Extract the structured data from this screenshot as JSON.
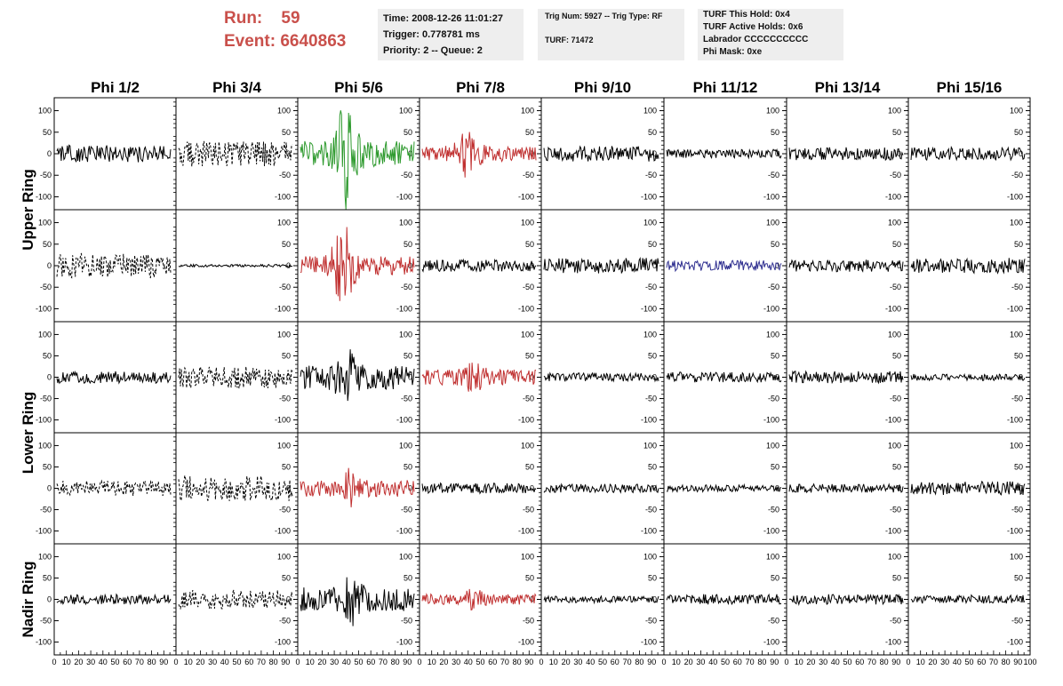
{
  "header": {
    "run_label": "Run:",
    "run_value": "59",
    "event_label": "Event:",
    "event_value": "6640863"
  },
  "info_box_1": {
    "time": "Time: 2008-12-26 11:01:27",
    "trigger": "Trigger: 0.778781 ms",
    "priority": "Priority: 2 -- Queue: 2"
  },
  "info_box_2": {
    "trig": "Trig Num: 5927 -- Trig Type: RF",
    "turf": "TURF: 71472"
  },
  "info_box_3": {
    "this_hold": "TURF This Hold: 0x4",
    "active_holds": "TURF Active Holds: 0x6",
    "labrador": "Labrador CCCCCCCCCC",
    "phi_mask": "Phi Mask: 0xe"
  },
  "colors": {
    "normal": "#000000",
    "green": "#2e9a2e",
    "red": "#c03030",
    "blue": "#303090",
    "header_red": "#c9504b"
  },
  "chart_data": {
    "type": "line",
    "phi_labels": [
      "Phi 1/2",
      "Phi 3/4",
      "Phi 5/6",
      "Phi 7/8",
      "Phi 9/10",
      "Phi 11/12",
      "Phi 13/14",
      "Phi 15/16"
    ],
    "ring_labels": [
      "Upper Ring",
      "Lower Ring",
      "Nadir Ring"
    ],
    "y_ticks": [
      100,
      50,
      0,
      -50,
      -100
    ],
    "ylim": [
      -130,
      130
    ],
    "xlim": [
      0,
      100
    ],
    "x_tick_labels": [
      "0",
      "10",
      "20",
      "30",
      "40",
      "50",
      "60",
      "70",
      "80",
      "90",
      "100"
    ],
    "grid": false,
    "panels": [
      [
        {
          "style": "solid",
          "color": "normal",
          "amp": 20,
          "burst": 0,
          "center": 50
        },
        {
          "style": "dashed",
          "color": "normal",
          "amp": 30,
          "burst": 0,
          "center": 50
        },
        {
          "style": "solid",
          "color": "green",
          "amp": 30,
          "burst": 100,
          "center": 40
        },
        {
          "style": "solid",
          "color": "red",
          "amp": 18,
          "burst": 40,
          "center": 40
        },
        {
          "style": "solid",
          "color": "normal",
          "amp": 18,
          "burst": 0,
          "center": 50
        },
        {
          "style": "solid",
          "color": "normal",
          "amp": 10,
          "burst": 0,
          "center": 50
        },
        {
          "style": "solid",
          "color": "normal",
          "amp": 15,
          "burst": 0,
          "center": 50
        },
        {
          "style": "solid",
          "color": "normal",
          "amp": 15,
          "burst": 0,
          "center": 50
        }
      ],
      [
        {
          "style": "dashed",
          "color": "normal",
          "amp": 28,
          "burst": 0,
          "center": 50
        },
        {
          "style": "solid",
          "color": "normal",
          "amp": 3,
          "burst": 0,
          "center": 50
        },
        {
          "style": "solid",
          "color": "red",
          "amp": 22,
          "burst": 85,
          "center": 38
        },
        {
          "style": "solid",
          "color": "normal",
          "amp": 14,
          "burst": 0,
          "center": 50
        },
        {
          "style": "solid",
          "color": "normal",
          "amp": 18,
          "burst": 0,
          "center": 50
        },
        {
          "style": "solid",
          "color": "blue",
          "amp": 12,
          "burst": 0,
          "center": 50
        },
        {
          "style": "solid",
          "color": "normal",
          "amp": 14,
          "burst": 0,
          "center": 50
        },
        {
          "style": "solid",
          "color": "normal",
          "amp": 18,
          "burst": 0,
          "center": 50
        }
      ],
      [
        {
          "style": "solid",
          "color": "normal",
          "amp": 14,
          "burst": 0,
          "center": 50
        },
        {
          "style": "dashed",
          "color": "normal",
          "amp": 26,
          "burst": 0,
          "center": 50
        },
        {
          "style": "solid",
          "color": "normal",
          "amp": 28,
          "burst": 45,
          "center": 40
        },
        {
          "style": "solid",
          "color": "red",
          "amp": 18,
          "burst": 20,
          "center": 45
        },
        {
          "style": "solid",
          "color": "normal",
          "amp": 10,
          "burst": 0,
          "center": 50
        },
        {
          "style": "solid",
          "color": "normal",
          "amp": 12,
          "burst": 0,
          "center": 50
        },
        {
          "style": "solid",
          "color": "normal",
          "amp": 14,
          "burst": 0,
          "center": 50
        },
        {
          "style": "solid",
          "color": "normal",
          "amp": 8,
          "burst": 0,
          "center": 50
        }
      ],
      [
        {
          "style": "dashed",
          "color": "normal",
          "amp": 18,
          "burst": 0,
          "center": 50
        },
        {
          "style": "dashed",
          "color": "normal",
          "amp": 30,
          "burst": 0,
          "center": 50
        },
        {
          "style": "solid",
          "color": "red",
          "amp": 20,
          "burst": 35,
          "center": 40
        },
        {
          "style": "solid",
          "color": "normal",
          "amp": 12,
          "burst": 0,
          "center": 50
        },
        {
          "style": "solid",
          "color": "normal",
          "amp": 10,
          "burst": 0,
          "center": 50
        },
        {
          "style": "solid",
          "color": "normal",
          "amp": 8,
          "burst": 0,
          "center": 50
        },
        {
          "style": "solid",
          "color": "normal",
          "amp": 10,
          "burst": 0,
          "center": 50
        },
        {
          "style": "solid",
          "color": "normal",
          "amp": 16,
          "burst": 0,
          "center": 50
        }
      ],
      [
        {
          "style": "solid",
          "color": "normal",
          "amp": 12,
          "burst": 0,
          "center": 50
        },
        {
          "style": "dashed",
          "color": "normal",
          "amp": 22,
          "burst": 0,
          "center": 50
        },
        {
          "style": "solid",
          "color": "normal",
          "amp": 28,
          "burst": 40,
          "center": 45
        },
        {
          "style": "solid",
          "color": "red",
          "amp": 12,
          "burst": 15,
          "center": 45
        },
        {
          "style": "solid",
          "color": "normal",
          "amp": 8,
          "burst": 0,
          "center": 50
        },
        {
          "style": "solid",
          "color": "normal",
          "amp": 12,
          "burst": 0,
          "center": 50
        },
        {
          "style": "solid",
          "color": "normal",
          "amp": 12,
          "burst": 0,
          "center": 50
        },
        {
          "style": "solid",
          "color": "normal",
          "amp": 10,
          "burst": 0,
          "center": 50
        }
      ]
    ]
  }
}
